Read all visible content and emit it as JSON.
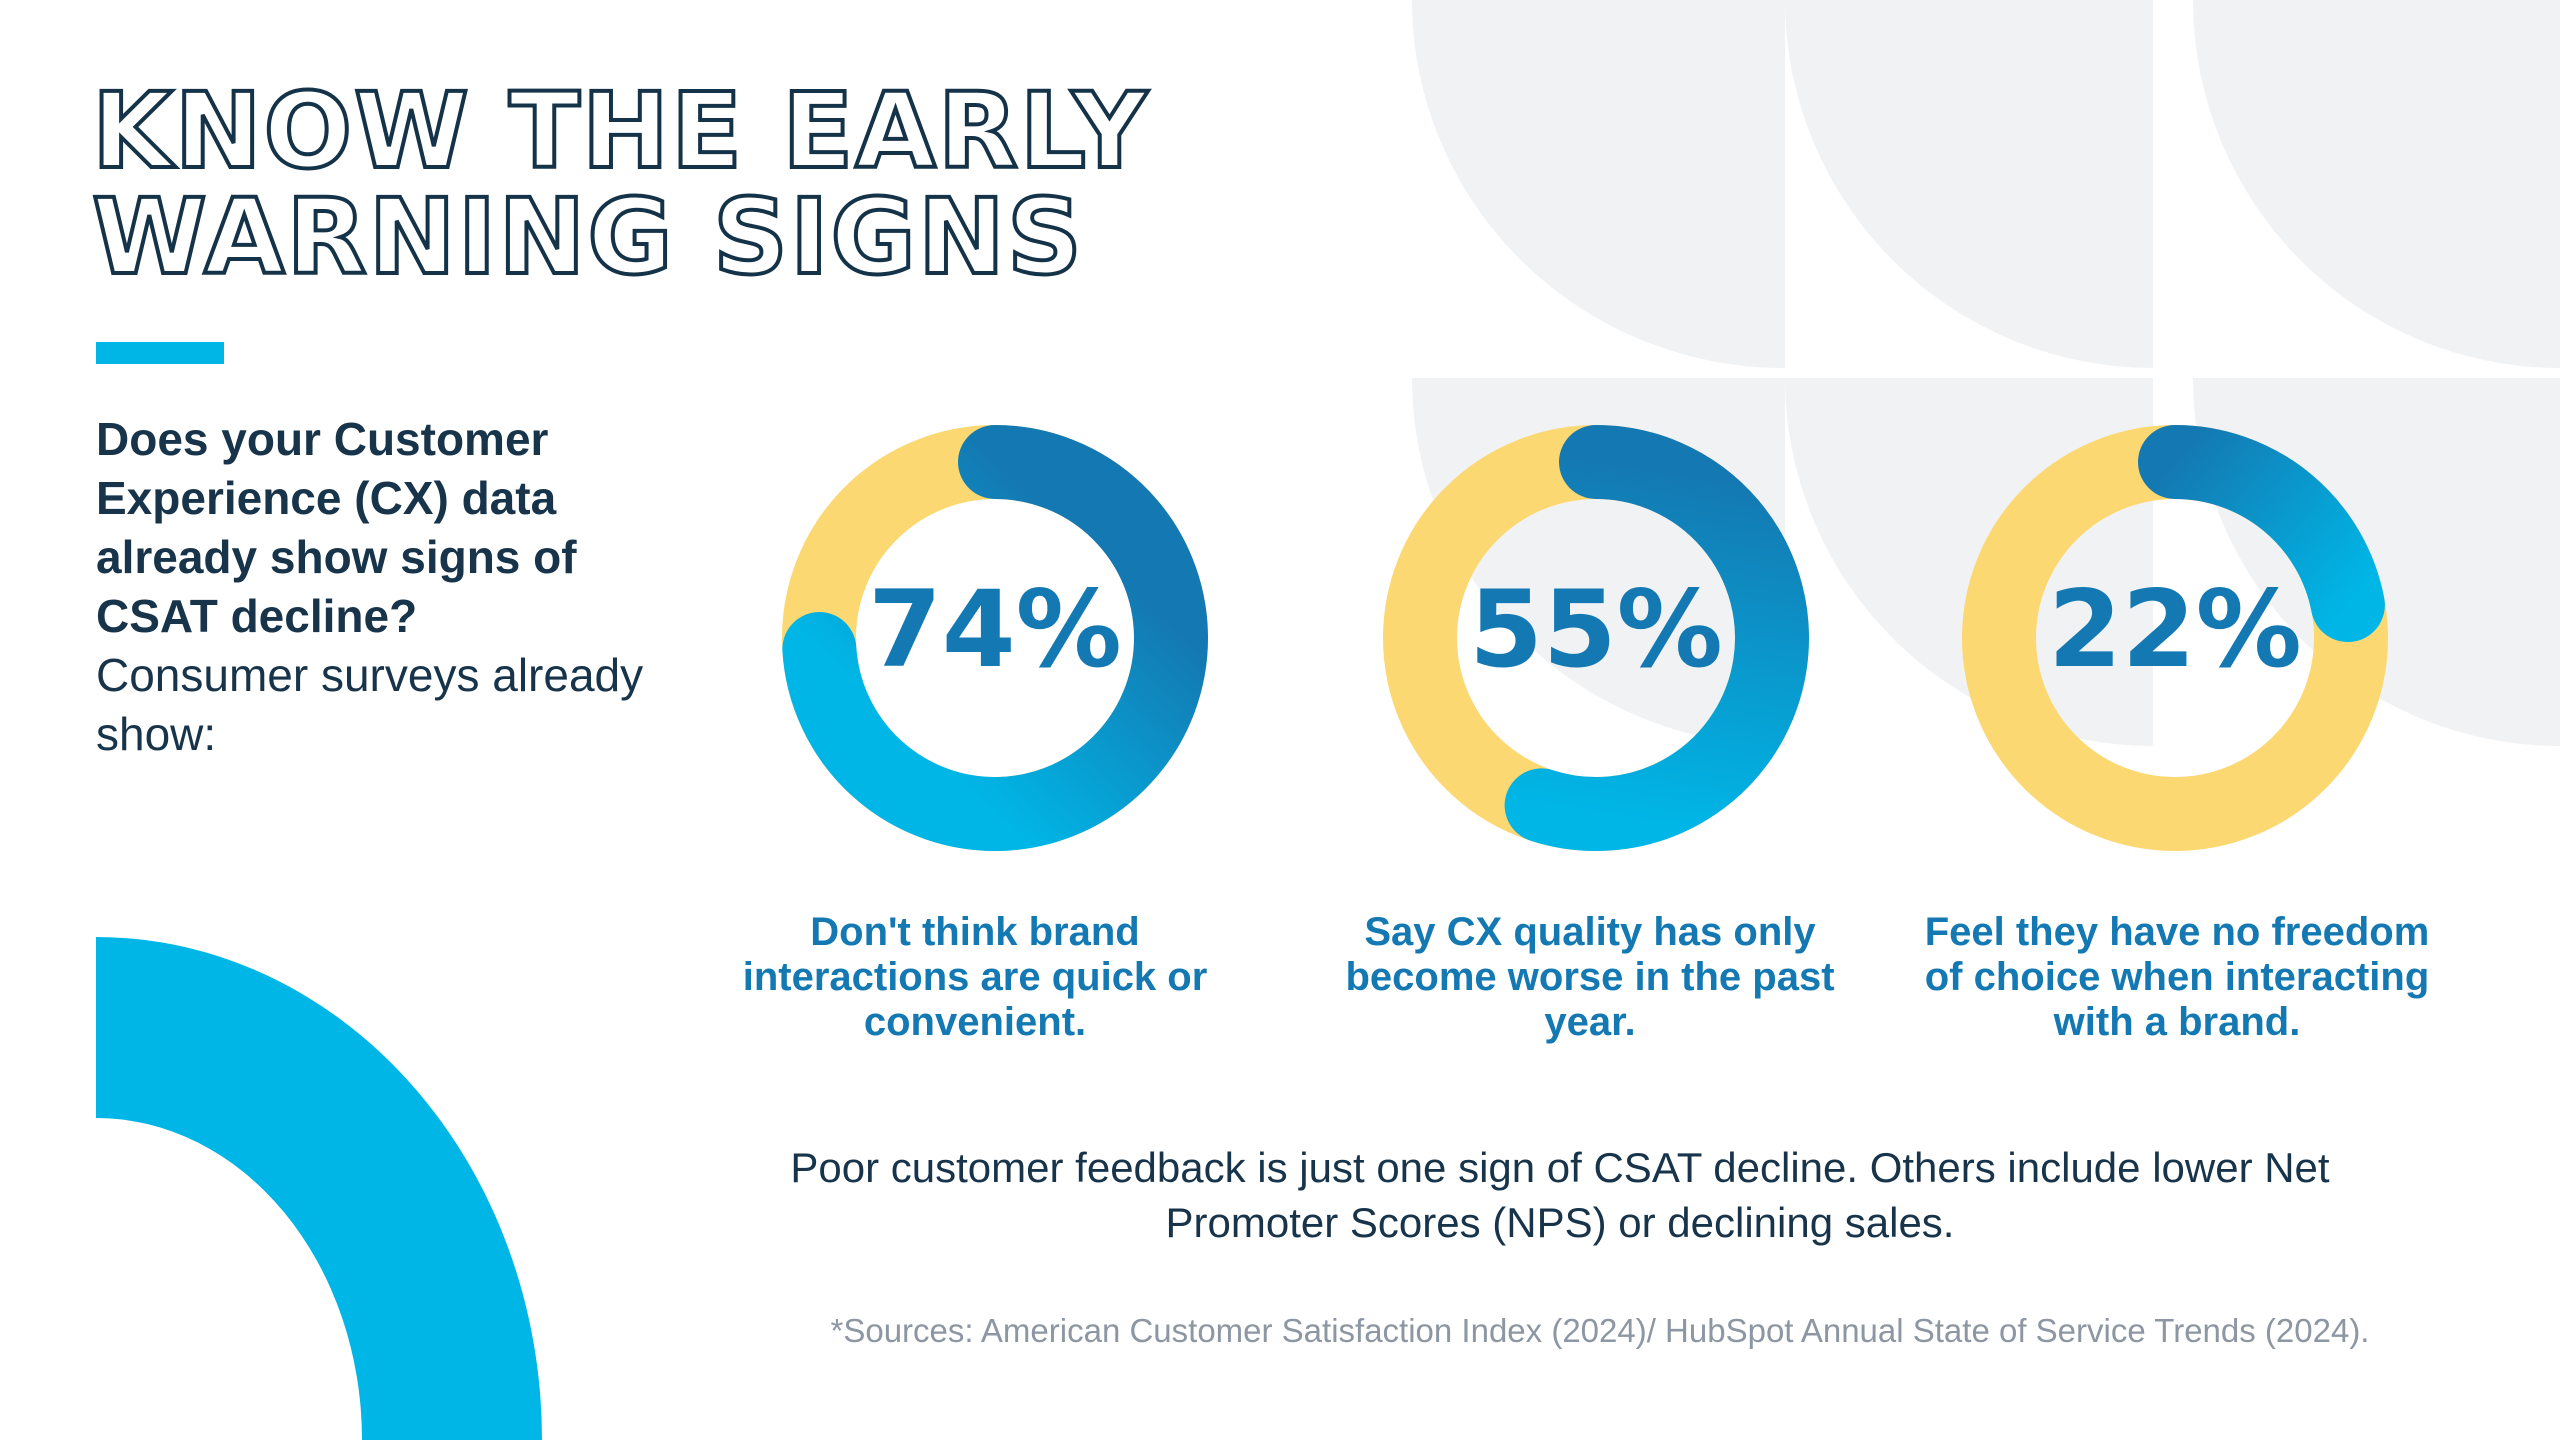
{
  "colors": {
    "navy": "#143349",
    "accent": "#00b6e6",
    "deep_blue": "#1479b2",
    "yellow": "#fcd872",
    "light_gray": "#f1f2f4",
    "muted_text": "#8d96a3"
  },
  "heading": {
    "line1": "KNOW THE EARLY",
    "line2": "WARNING SIGNS"
  },
  "intro": {
    "question": "Does your Customer Experience (CX) data already show signs of CSAT decline?",
    "lead": "Consumer surveys already show:"
  },
  "chart_data": [
    {
      "type": "pie",
      "style": "donut",
      "value": 74,
      "remainder": 26,
      "label": "74%",
      "caption": "Don't think brand interactions are quick or convenient."
    },
    {
      "type": "pie",
      "style": "donut",
      "value": 55,
      "remainder": 45,
      "label": "55%",
      "caption": "Say CX quality has only become worse in the past year."
    },
    {
      "type": "pie",
      "style": "donut",
      "value": 22,
      "remainder": 78,
      "label": "22%",
      "caption": "Feel they have no freedom of choice when interacting with a brand."
    }
  ],
  "summary": "Poor customer feedback is just one sign of CSAT decline. Others include lower Net Promoter Scores (NPS) or declining sales.",
  "source": "*Sources: American Customer Satisfaction Index (2024)/ HubSpot Annual State of Service Trends (2024)."
}
